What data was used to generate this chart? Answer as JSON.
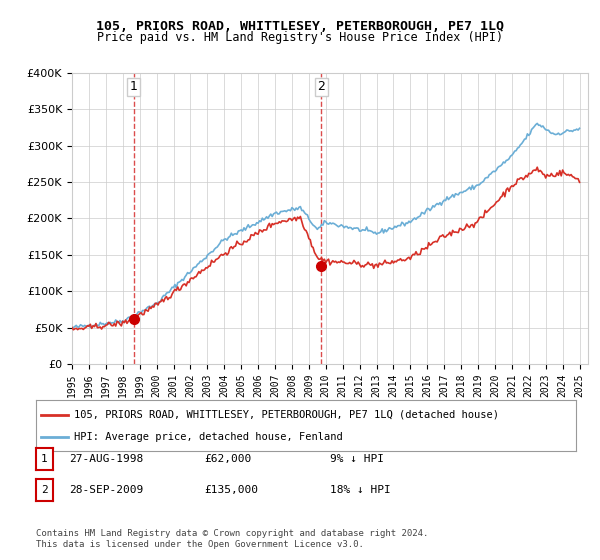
{
  "title": "105, PRIORS ROAD, WHITTLESEY, PETERBOROUGH, PE7 1LQ",
  "subtitle": "Price paid vs. HM Land Registry's House Price Index (HPI)",
  "legend_line1": "105, PRIORS ROAD, WHITTLESEY, PETERBOROUGH, PE7 1LQ (detached house)",
  "legend_line2": "HPI: Average price, detached house, Fenland",
  "table_rows": [
    {
      "num": "1",
      "date": "27-AUG-1998",
      "price": "£62,000",
      "hpi": "9% ↓ HPI"
    },
    {
      "num": "2",
      "date": "28-SEP-2009",
      "price": "£135,000",
      "hpi": "18% ↓ HPI"
    }
  ],
  "footnote": "Contains HM Land Registry data © Crown copyright and database right 2024.\nThis data is licensed under the Open Government Licence v3.0.",
  "sale1_year": 1998.65,
  "sale1_price": 62000,
  "sale2_year": 2009.74,
  "sale2_price": 135000,
  "hpi_color": "#6baed6",
  "price_color": "#d73027",
  "marker_color": "#d73027",
  "sale_marker_color": "#cc0000",
  "dashed_line_color": "#cc0000",
  "ylim": [
    0,
    400000
  ],
  "xlim_start": 1995.0,
  "xlim_end": 2025.5,
  "background_color": "#ffffff",
  "grid_color": "#cccccc"
}
